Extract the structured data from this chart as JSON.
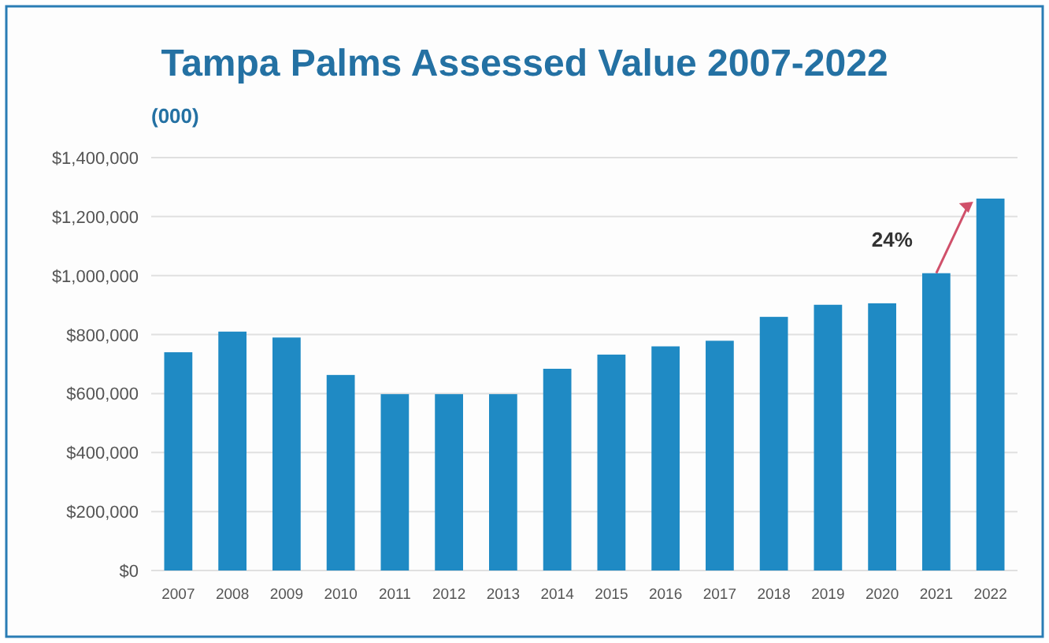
{
  "chart_data": {
    "type": "bar",
    "title": "Tampa Palms Assessed Value  2007-2022",
    "subtitle": "(000)",
    "categories": [
      "2007",
      "2008",
      "2009",
      "2010",
      "2011",
      "2012",
      "2013",
      "2014",
      "2015",
      "2016",
      "2017",
      "2018",
      "2019",
      "2020",
      "2021",
      "2022"
    ],
    "values": [
      740000,
      810000,
      790000,
      663000,
      598000,
      598000,
      598000,
      684000,
      732000,
      760000,
      779000,
      860000,
      901000,
      906000,
      1008000,
      1261000
    ],
    "color": "#1f8ac4",
    "ylim": [
      0,
      1400000
    ],
    "yticks": [
      {
        "value": 0,
        "label": "$0"
      },
      {
        "value": 200000,
        "label": "$200,000"
      },
      {
        "value": 400000,
        "label": "$400,000"
      },
      {
        "value": 600000,
        "label": "$600,000"
      },
      {
        "value": 800000,
        "label": "$800,000"
      },
      {
        "value": 1000000,
        "label": "$1,000,000"
      },
      {
        "value": 1200000,
        "label": "$1,200,000"
      },
      {
        "value": 1400000,
        "label": "$1,400,000"
      }
    ],
    "grid": "y",
    "annotations": [
      "24%"
    ]
  }
}
